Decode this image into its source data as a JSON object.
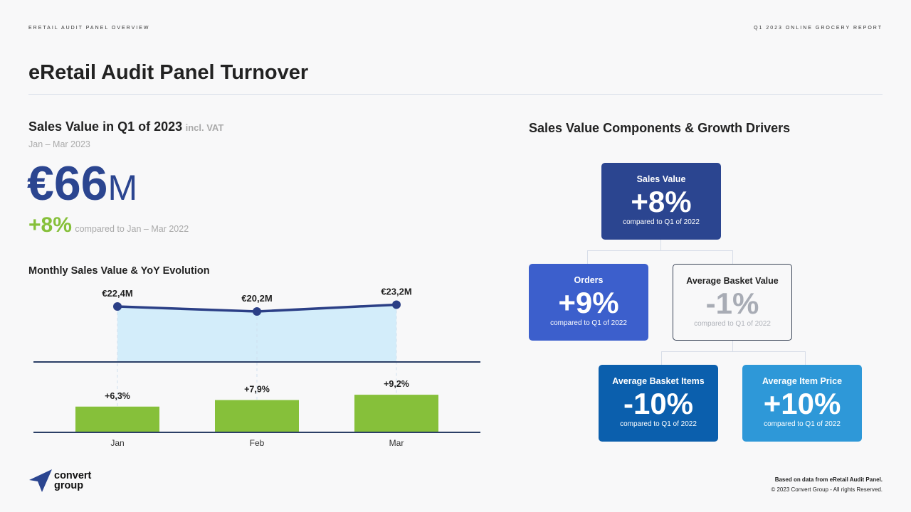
{
  "header": {
    "left": "ERETAIL AUDIT PANEL OVERVIEW",
    "right": "Q1 2023 ONLINE GROCERY REPORT"
  },
  "title": "eRetail Audit Panel Turnover",
  "kpi": {
    "heading": "Sales Value in Q1 of 2023",
    "heading_note": "incl. VAT",
    "period": "Jan – Mar 2023",
    "value": "€66",
    "unit": "M",
    "growth": "+8%",
    "growth_note": "compared to Jan – Mar 2022"
  },
  "drivers": {
    "heading": "Sales Value Components & Growth Drivers",
    "boxes": [
      {
        "title": "Sales Value",
        "value": "+8%",
        "note": "compared to Q1 of 2022"
      },
      {
        "title": "Orders",
        "value": "+9%",
        "note": "compared to Q1 of 2022"
      },
      {
        "title": "Average Basket Value",
        "value": "-1%",
        "note": "compared to Q1 of 2022"
      },
      {
        "title": "Average Basket Items",
        "value": "-10%",
        "note": "compared to Q1 of 2022"
      },
      {
        "title": "Average Item Price",
        "value": "+10%",
        "note": "compared to Q1 of 2022"
      }
    ]
  },
  "chart_data": {
    "type": "line",
    "title": "Monthly Sales Value & YoY Evolution",
    "categories": [
      "Jan",
      "Feb",
      "Mar"
    ],
    "series": [
      {
        "name": "Sales Value (€M)",
        "type": "area-line",
        "values": [
          22.4,
          20.2,
          23.2
        ],
        "labels": [
          "€22,4M",
          "€20,2M",
          "€23,2M"
        ]
      },
      {
        "name": "YoY Evolution (%)",
        "type": "bar",
        "values": [
          6.3,
          7.9,
          9.2
        ],
        "labels": [
          "+6,3%",
          "+7,9%",
          "+9,2%"
        ]
      }
    ],
    "colors": {
      "line": "#2b3f86",
      "area": "#d3edfa",
      "bar": "#86c03a"
    }
  },
  "footer": {
    "logo_text": [
      "convert",
      "group"
    ],
    "source": "Based on data from eRetail Audit Panel.",
    "copyright": "© 2023 Convert Group - All rights Reserved."
  }
}
